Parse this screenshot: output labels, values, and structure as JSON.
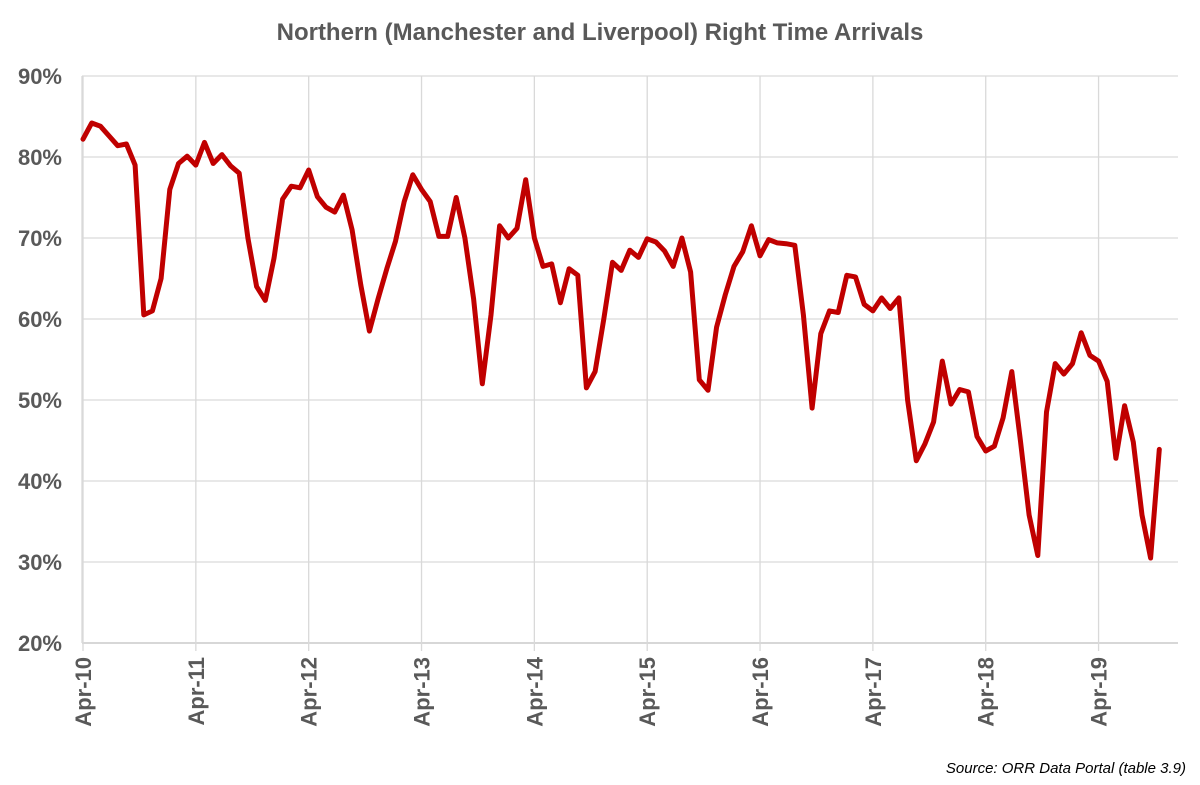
{
  "chart_data": {
    "type": "line",
    "title": "Northern (Manchester and Liverpool) Right Time Arrivals",
    "xlabel": "",
    "ylabel": "",
    "ylim": [
      20,
      90
    ],
    "y_unit": "%",
    "y_ticks": [
      "20%",
      "30%",
      "40%",
      "50%",
      "60%",
      "70%",
      "80%",
      "90%"
    ],
    "x_tick_labels": [
      "Apr-10",
      "Apr-11",
      "Apr-12",
      "Apr-13",
      "Apr-14",
      "Apr-15",
      "Apr-16",
      "Apr-17",
      "Apr-18",
      "Apr-19"
    ],
    "grid": "both",
    "legend": "none",
    "period": "4-weekly (13 periods per year, starting Apr-10)",
    "series": [
      {
        "color": "#c00000",
        "values": [
          82.2,
          84.2,
          83.8,
          82.6,
          81.4,
          81.6,
          79.0,
          60.5,
          61.0,
          65.0,
          76.0,
          79.2,
          80.1,
          79.0,
          81.8,
          79.2,
          80.3,
          78.9,
          78.0,
          70.0,
          64.0,
          62.3,
          67.5,
          74.8,
          76.4,
          76.2,
          78.4,
          75.1,
          73.8,
          73.2,
          75.3,
          71.0,
          64.2,
          58.5,
          62.5,
          66.2,
          69.6,
          74.5,
          77.8,
          76.0,
          74.5,
          70.2,
          70.2,
          75.0,
          70.0,
          62.5,
          52.0,
          60.5,
          71.5,
          70.0,
          71.2,
          77.2,
          70.0,
          66.5,
          66.8,
          62.0,
          66.2,
          65.4,
          51.5,
          53.5,
          60.0,
          67.0,
          66.0,
          68.5,
          67.6,
          69.9,
          69.5,
          68.4,
          66.5,
          70.0,
          65.8,
          52.5,
          51.2,
          59.0,
          63.0,
          66.5,
          68.3,
          71.5,
          67.8,
          69.8,
          69.4,
          69.3,
          69.1,
          60.5,
          49.0,
          58.2,
          61.0,
          60.8,
          65.4,
          65.2,
          61.8,
          61.0,
          62.6,
          61.3,
          62.6,
          50.0,
          42.5,
          44.6,
          47.3,
          54.8,
          49.5,
          51.3,
          51.0,
          45.5,
          43.7,
          44.3,
          47.8,
          53.5,
          45.0,
          35.8,
          30.8,
          48.5,
          54.5,
          53.2,
          54.5,
          58.3,
          55.5,
          54.8,
          52.3,
          42.8,
          49.3,
          44.8,
          35.8,
          30.5,
          43.9
        ]
      }
    ]
  },
  "source": "Source: ORR Data Portal (table 3.9)"
}
